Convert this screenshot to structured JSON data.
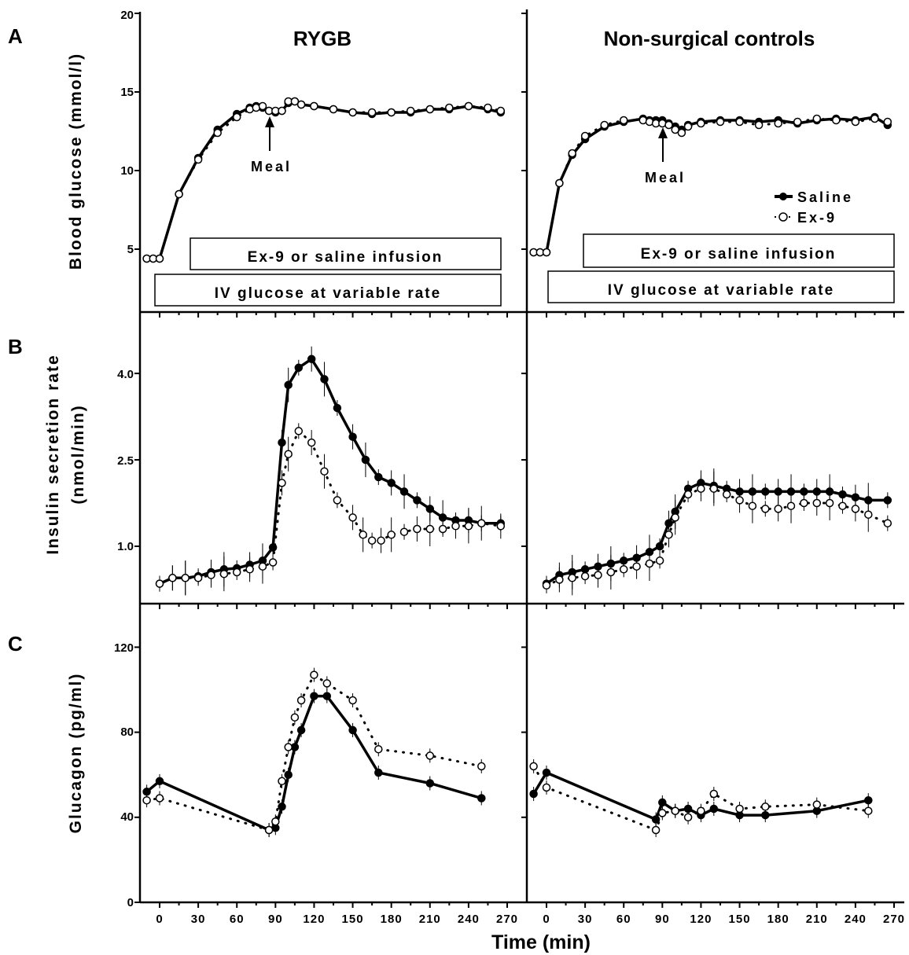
{
  "figure": {
    "panel_labels": [
      "A",
      "B",
      "C"
    ],
    "column_titles": [
      "RYGB",
      "Non-surgical controls"
    ],
    "x_axis_title": "Time (min)",
    "x_ticks": [
      "0",
      "30",
      "60",
      "90",
      "120",
      "150",
      "180",
      "210",
      "240",
      "270"
    ],
    "y_titles": {
      "glucose": "Blood glucose (mmol/l)",
      "isr_line1": "Insulin secretion rate",
      "isr_line2": "(nmol/min)",
      "glucagon": "Glucagon (pg/ml)"
    },
    "y_ticks": {
      "glucose": [
        "5",
        "10",
        "15",
        "20"
      ],
      "isr": [
        "1.0",
        "2.5",
        "4.0"
      ],
      "glucagon": [
        "0",
        "40",
        "80",
        "120"
      ]
    },
    "annotations": {
      "meal": "Meal",
      "infusion_box": "Ex-9 or saline infusion",
      "iv_box": "IV glucose at variable rate"
    },
    "legend": {
      "saline": "Saline",
      "ex9": "Ex-9"
    },
    "colors": {
      "ink": "#000000",
      "background": "#ffffff"
    }
  },
  "chart_data": [
    {
      "type": "line",
      "panel": "A",
      "group": "RYGB",
      "ylabel": "Blood glucose (mmol/l)",
      "xlabel": "Time (min)",
      "xlim": [
        -10,
        275
      ],
      "ylim": [
        0,
        20
      ],
      "annotation_x": 90,
      "series": [
        {
          "name": "Saline",
          "x": [
            -10,
            -5,
            0,
            15,
            30,
            45,
            60,
            70,
            75,
            80,
            85,
            90,
            95,
            100,
            105,
            110,
            120,
            135,
            150,
            165,
            180,
            195,
            210,
            225,
            240,
            255,
            265
          ],
          "y": [
            4.4,
            4.4,
            4.4,
            8.5,
            10.8,
            12.6,
            13.6,
            14.0,
            14.1,
            14.0,
            13.8,
            13.7,
            13.8,
            14.3,
            14.4,
            14.2,
            14.1,
            13.9,
            13.7,
            13.6,
            13.7,
            13.7,
            13.9,
            13.9,
            14.1,
            13.9,
            13.7
          ]
        },
        {
          "name": "Ex-9",
          "x": [
            -10,
            -5,
            0,
            15,
            30,
            45,
            60,
            70,
            75,
            80,
            85,
            90,
            95,
            100,
            105,
            110,
            120,
            135,
            150,
            165,
            180,
            195,
            210,
            225,
            240,
            255,
            265
          ],
          "y": [
            4.4,
            4.4,
            4.4,
            8.5,
            10.7,
            12.4,
            13.4,
            13.9,
            14.0,
            14.1,
            13.8,
            13.8,
            13.8,
            14.4,
            14.4,
            14.2,
            14.1,
            13.9,
            13.7,
            13.7,
            13.7,
            13.8,
            13.9,
            14.0,
            14.1,
            14.0,
            13.8
          ]
        }
      ]
    },
    {
      "type": "line",
      "panel": "A",
      "group": "Non-surgical controls",
      "ylabel": "Blood glucose (mmol/l)",
      "xlabel": "Time (min)",
      "xlim": [
        -10,
        275
      ],
      "ylim": [
        0,
        20
      ],
      "annotation_x": 90,
      "series": [
        {
          "name": "Saline",
          "x": [
            -10,
            -5,
            0,
            10,
            20,
            30,
            45,
            60,
            75,
            80,
            85,
            90,
            95,
            100,
            105,
            110,
            120,
            135,
            150,
            165,
            180,
            195,
            210,
            225,
            240,
            255,
            265
          ],
          "y": [
            4.8,
            4.8,
            4.8,
            9.2,
            11.0,
            12.0,
            12.8,
            13.1,
            13.3,
            13.2,
            13.2,
            13.2,
            13.0,
            12.8,
            12.6,
            12.9,
            13.1,
            13.2,
            13.2,
            13.1,
            13.2,
            13.0,
            13.2,
            13.3,
            13.2,
            13.4,
            12.9
          ]
        },
        {
          "name": "Ex-9",
          "x": [
            -10,
            -5,
            0,
            10,
            20,
            30,
            45,
            60,
            75,
            80,
            85,
            90,
            95,
            100,
            105,
            110,
            120,
            135,
            150,
            165,
            180,
            195,
            210,
            225,
            240,
            255,
            265
          ],
          "y": [
            4.8,
            4.8,
            4.8,
            9.2,
            11.1,
            12.2,
            12.9,
            13.2,
            13.2,
            13.1,
            13.0,
            13.0,
            12.9,
            12.6,
            12.4,
            12.8,
            13.0,
            13.1,
            13.1,
            12.9,
            13.0,
            13.1,
            13.3,
            13.2,
            13.1,
            13.3,
            13.1
          ]
        }
      ]
    },
    {
      "type": "line",
      "panel": "B",
      "group": "RYGB",
      "ylabel": "Insulin secretion rate (nmol/min)",
      "xlabel": "Time (min)",
      "xlim": [
        -10,
        275
      ],
      "ylim": [
        0.0,
        5.0
      ],
      "series": [
        {
          "name": "Saline",
          "x": [
            0,
            10,
            20,
            30,
            40,
            50,
            60,
            70,
            80,
            88,
            95,
            100,
            108,
            118,
            128,
            138,
            150,
            160,
            170,
            180,
            190,
            200,
            210,
            220,
            230,
            240,
            250,
            265
          ],
          "y": [
            0.35,
            0.45,
            0.45,
            0.48,
            0.55,
            0.6,
            0.62,
            0.68,
            0.75,
            0.98,
            2.8,
            3.8,
            4.1,
            4.25,
            3.9,
            3.4,
            2.9,
            2.5,
            2.2,
            2.1,
            1.95,
            1.8,
            1.65,
            1.5,
            1.45,
            1.45,
            1.4,
            1.4
          ]
        },
        {
          "name": "Ex-9",
          "x": [
            0,
            10,
            20,
            30,
            40,
            50,
            60,
            70,
            80,
            88,
            95,
            100,
            108,
            118,
            128,
            138,
            150,
            158,
            165,
            172,
            180,
            190,
            200,
            210,
            220,
            230,
            240,
            250,
            265
          ],
          "y": [
            0.35,
            0.45,
            0.45,
            0.45,
            0.5,
            0.52,
            0.55,
            0.6,
            0.65,
            0.72,
            2.1,
            2.6,
            3.0,
            2.8,
            2.3,
            1.8,
            1.5,
            1.2,
            1.1,
            1.1,
            1.2,
            1.25,
            1.3,
            1.3,
            1.3,
            1.35,
            1.35,
            1.4,
            1.35
          ]
        }
      ]
    },
    {
      "type": "line",
      "panel": "B",
      "group": "Non-surgical controls",
      "ylabel": "Insulin secretion rate (nmol/min)",
      "xlabel": "Time (min)",
      "xlim": [
        -10,
        275
      ],
      "ylim": [
        0.0,
        5.0
      ],
      "series": [
        {
          "name": "Saline",
          "x": [
            0,
            10,
            20,
            30,
            40,
            50,
            60,
            70,
            80,
            88,
            95,
            100,
            110,
            120,
            130,
            140,
            150,
            160,
            170,
            180,
            190,
            200,
            210,
            220,
            230,
            240,
            250,
            265
          ],
          "y": [
            0.35,
            0.5,
            0.55,
            0.6,
            0.65,
            0.7,
            0.75,
            0.8,
            0.9,
            1.0,
            1.4,
            1.6,
            2.0,
            2.1,
            2.05,
            2.0,
            1.95,
            1.95,
            1.95,
            1.95,
            1.95,
            1.95,
            1.95,
            1.95,
            1.9,
            1.85,
            1.8,
            1.8
          ]
        },
        {
          "name": "Ex-9",
          "x": [
            0,
            10,
            20,
            30,
            40,
            50,
            60,
            70,
            80,
            88,
            95,
            100,
            110,
            120,
            130,
            140,
            150,
            160,
            170,
            180,
            190,
            200,
            210,
            220,
            230,
            240,
            250,
            265
          ],
          "y": [
            0.32,
            0.42,
            0.45,
            0.48,
            0.5,
            0.55,
            0.6,
            0.65,
            0.7,
            0.75,
            1.2,
            1.5,
            1.9,
            2.0,
            2.0,
            1.9,
            1.8,
            1.7,
            1.65,
            1.65,
            1.7,
            1.75,
            1.75,
            1.75,
            1.7,
            1.65,
            1.55,
            1.4
          ]
        }
      ]
    },
    {
      "type": "line",
      "panel": "C",
      "group": "RYGB",
      "ylabel": "Glucagon (pg/ml)",
      "xlabel": "Time (min)",
      "xlim": [
        -10,
        275
      ],
      "ylim": [
        0,
        140
      ],
      "series": [
        {
          "name": "Saline",
          "x": [
            -10,
            0,
            85,
            90,
            95,
            100,
            105,
            110,
            120,
            130,
            150,
            170,
            210,
            250
          ],
          "y": [
            52,
            57,
            34,
            35,
            45,
            60,
            73,
            81,
            97,
            97,
            81,
            61,
            56,
            49
          ]
        },
        {
          "name": "Ex-9",
          "x": [
            -10,
            0,
            85,
            90,
            95,
            100,
            105,
            110,
            120,
            130,
            150,
            170,
            210,
            250
          ],
          "y": [
            48,
            49,
            34,
            38,
            57,
            73,
            87,
            95,
            107,
            103,
            95,
            72,
            69,
            64
          ]
        }
      ]
    },
    {
      "type": "line",
      "panel": "C",
      "group": "Non-surgical controls",
      "ylabel": "Glucagon (pg/ml)",
      "xlabel": "Time (min)",
      "xlim": [
        -10,
        275
      ],
      "ylim": [
        0,
        140
      ],
      "series": [
        {
          "name": "Saline",
          "x": [
            -10,
            0,
            85,
            90,
            100,
            110,
            120,
            130,
            150,
            170,
            210,
            250
          ],
          "y": [
            51,
            61,
            39,
            47,
            43,
            44,
            41,
            44,
            41,
            41,
            43,
            48
          ]
        },
        {
          "name": "Ex-9",
          "x": [
            -10,
            0,
            85,
            90,
            100,
            110,
            120,
            130,
            150,
            170,
            210,
            250
          ],
          "y": [
            64,
            54,
            34,
            42,
            43,
            40,
            43,
            51,
            44,
            45,
            46,
            43
          ]
        }
      ]
    }
  ]
}
